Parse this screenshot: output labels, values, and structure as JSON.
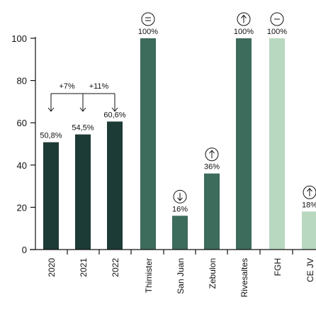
{
  "chart_data": {
    "type": "bar",
    "title": "",
    "xlabel": "",
    "ylabel": "",
    "ylim": [
      0,
      100
    ],
    "yticks": [
      "0",
      "20",
      "40",
      "60",
      "80",
      "100"
    ],
    "grid": false,
    "categories": [
      "2020",
      "2021",
      "2022",
      "Thimister",
      "San Juan",
      "Zebulon",
      "Rivesaltes",
      "FGH",
      "CE JV"
    ],
    "values": [
      50.8,
      54.5,
      60.6,
      100,
      16,
      36,
      100,
      100,
      18
    ],
    "value_labels": [
      "50,8%",
      "54,5%",
      "60,6%",
      "100%",
      "16%",
      "36%",
      "100%",
      "100%",
      "18%"
    ],
    "bar_colors": [
      "#1d3b36",
      "#1d3b36",
      "#1d3b36",
      "#3d6b5c",
      "#3d6b5c",
      "#3d6b5c",
      "#3d6b5c",
      "#b8d8bf",
      "#b8d8bf"
    ],
    "indicator_icons": [
      "",
      "",
      "",
      "equal-circle-icon",
      "arrow-down-circle-icon",
      "arrow-up-circle-icon",
      "arrow-up-circle-icon",
      "minus-circle-icon",
      "arrow-up-circle-icon"
    ],
    "changes": [
      {
        "label": "+7%",
        "from": 0,
        "to": 1
      },
      {
        "label": "+11%",
        "from": 1,
        "to": 2
      }
    ]
  }
}
